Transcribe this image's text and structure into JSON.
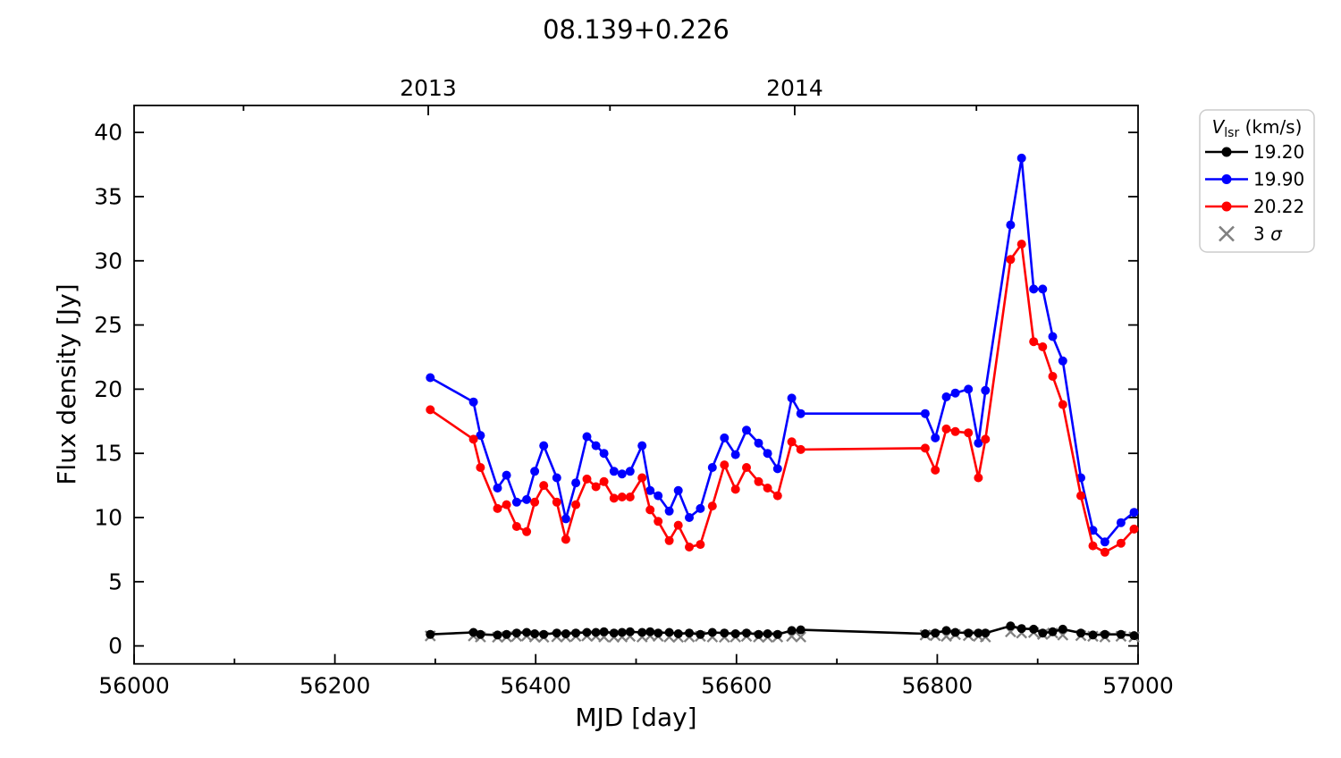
{
  "figure": {
    "title": "08.139+0.226"
  },
  "chart_data": {
    "type": "line",
    "title": "08.139+0.226",
    "xlabel": "MJD [day]",
    "ylabel": "Flux density [Jy]",
    "xlim": [
      56000,
      57000
    ],
    "ylim": [
      -1.4,
      42.1
    ],
    "grid": false,
    "x_major_ticks": [
      56000,
      56200,
      56400,
      56600,
      56800,
      57000
    ],
    "x_major_labels": [
      "56000",
      "56200",
      "56400",
      "56600",
      "56800",
      "57000"
    ],
    "x_minor_ticks": [
      56100,
      56300,
      56500,
      56700,
      56900
    ],
    "y_major_ticks": [
      0,
      5,
      10,
      15,
      20,
      25,
      30,
      35,
      40
    ],
    "y_major_labels": [
      "0",
      "5",
      "10",
      "15",
      "20",
      "25",
      "30",
      "35",
      "40"
    ],
    "top_axis_major": [
      {
        "x": 56293,
        "label": "2013"
      },
      {
        "x": 56658,
        "label": "2014"
      }
    ],
    "top_axis_minor": [
      56109,
      56474,
      56839
    ],
    "x": [
      56295,
      56338,
      56345,
      56362,
      56371,
      56381,
      56391,
      56399,
      56408,
      56421,
      56430,
      56440,
      56451,
      56460,
      56468,
      56478,
      56486,
      56494,
      56506,
      56514,
      56522,
      56533,
      56542,
      56553,
      56564,
      56576,
      56588,
      56599,
      56610,
      56622,
      56631,
      56641,
      56655,
      56664,
      56788,
      56798,
      56809,
      56818,
      56831,
      56841,
      56848,
      56873,
      56884,
      56896,
      56905,
      56915,
      56925,
      56943,
      56955,
      56967,
      56983,
      56996
    ],
    "series": [
      {
        "name": "19.20",
        "color": "#000000",
        "marker": "circle",
        "line": true,
        "values": [
          0.9,
          1.05,
          0.9,
          0.85,
          0.9,
          1.0,
          1.05,
          0.95,
          0.9,
          1.0,
          0.95,
          1.0,
          1.05,
          1.05,
          1.1,
          1.0,
          1.05,
          1.1,
          1.05,
          1.1,
          1.0,
          1.05,
          0.95,
          1.0,
          0.9,
          1.05,
          1.0,
          0.95,
          1.0,
          0.9,
          0.95,
          0.9,
          1.2,
          1.25,
          0.95,
          1.0,
          1.2,
          1.05,
          1.0,
          1.0,
          1.0,
          1.55,
          1.35,
          1.3,
          1.0,
          1.1,
          1.3,
          1.0,
          0.85,
          0.9,
          0.9,
          0.8
        ]
      },
      {
        "name": "19.90",
        "color": "#0000ff",
        "marker": "circle",
        "line": true,
        "values": [
          20.9,
          19.0,
          16.4,
          12.3,
          13.3,
          11.2,
          11.4,
          13.6,
          15.6,
          13.1,
          9.9,
          12.7,
          16.3,
          15.6,
          15.0,
          13.6,
          13.4,
          13.6,
          15.6,
          12.1,
          11.7,
          10.5,
          12.1,
          10.0,
          10.7,
          13.9,
          16.2,
          14.9,
          16.8,
          15.8,
          15.0,
          13.8,
          19.3,
          18.1,
          18.1,
          16.2,
          19.4,
          19.7,
          20.0,
          15.8,
          19.9,
          32.8,
          38.0,
          27.8,
          27.8,
          24.1,
          22.2,
          13.1,
          9.0,
          8.1,
          9.6,
          10.4
        ]
      },
      {
        "name": "20.22",
        "color": "#ff0000",
        "marker": "circle",
        "line": true,
        "values": [
          18.4,
          16.1,
          13.9,
          10.7,
          11.0,
          9.3,
          8.9,
          11.2,
          12.5,
          11.2,
          8.3,
          11.0,
          13.0,
          12.4,
          12.8,
          11.5,
          11.6,
          11.6,
          13.1,
          10.6,
          9.7,
          8.2,
          9.4,
          7.7,
          7.9,
          10.9,
          14.1,
          12.2,
          13.9,
          12.8,
          12.3,
          11.7,
          15.9,
          15.3,
          15.4,
          13.7,
          16.9,
          16.7,
          16.6,
          13.1,
          16.1,
          30.1,
          31.3,
          23.7,
          23.3,
          21.0,
          18.8,
          11.7,
          7.8,
          7.3,
          8.0,
          9.1
        ]
      },
      {
        "name": "3 σ",
        "color": "#808080",
        "marker": "x",
        "line": false,
        "values": [
          0.78,
          0.78,
          0.7,
          0.68,
          0.7,
          0.75,
          0.78,
          0.7,
          0.68,
          0.72,
          0.7,
          0.75,
          0.78,
          0.75,
          0.7,
          0.68,
          0.7,
          0.75,
          0.7,
          0.78,
          0.75,
          0.7,
          0.68,
          0.7,
          0.75,
          0.7,
          0.68,
          0.7,
          0.75,
          0.7,
          0.68,
          0.7,
          0.75,
          0.7,
          0.85,
          0.8,
          0.75,
          0.88,
          0.8,
          0.75,
          0.7,
          1.1,
          1.0,
          1.05,
          0.9,
          1.0,
          0.85,
          0.8,
          0.75,
          0.7,
          0.75,
          0.7
        ]
      }
    ],
    "legend": {
      "position": "outside-right-top",
      "title": {
        "var": "V",
        "sub": "lsr",
        "rest": " (km/s)"
      },
      "entries": [
        {
          "label": "19.20",
          "color": "#000000",
          "marker": "circle-line"
        },
        {
          "label": "19.90",
          "color": "#0000ff",
          "marker": "circle-line"
        },
        {
          "label": "20.22",
          "color": "#ff0000",
          "marker": "circle-line"
        },
        {
          "label_pre": "3 ",
          "label_sym": "σ",
          "color": "#808080",
          "marker": "x"
        }
      ]
    }
  }
}
